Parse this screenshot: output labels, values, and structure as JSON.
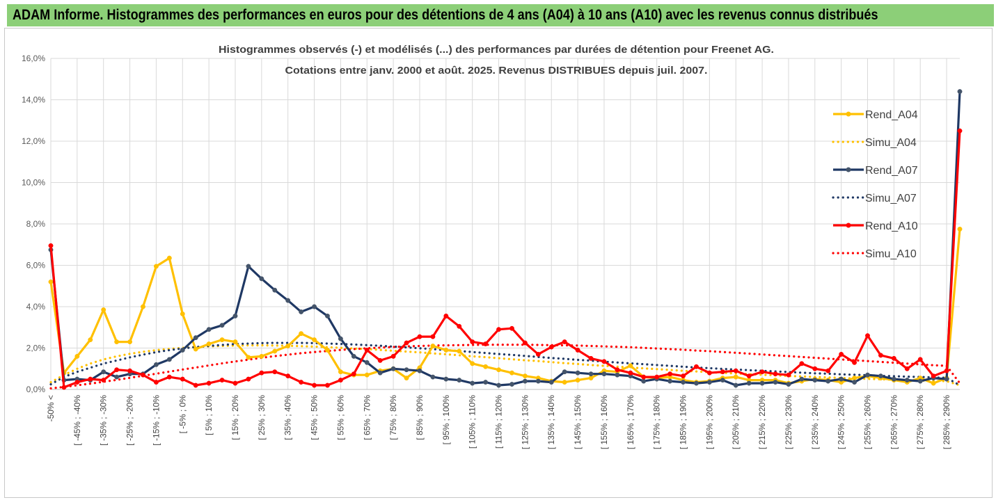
{
  "banner": {
    "title": "ADAM Informe. Histogrammes des performances en euros pour des détentions de 4 ans (A04) à 10 ans (A10) avec les revenus connus distribués"
  },
  "chart_data": {
    "type": "line",
    "title": "Histogrammes observés (-) et modélisés (...) des performances par durées de détention pour Freenet AG.",
    "subtitle": "Cotations entre janv. 2000 et août. 2025. Revenus DISTRIBUES depuis juil. 2007.",
    "xlabel": "",
    "ylabel": "",
    "ylim": [
      0,
      16
    ],
    "yticks": [
      "0,0%",
      "2,0%",
      "4,0%",
      "6,0%",
      "8,0%",
      "10,0%",
      "12,0%",
      "14,0%",
      "16,0%"
    ],
    "grid": true,
    "legend_position": "right",
    "category_count": 70,
    "x_labels": [
      "-50% <",
      "[ -45% ; -40%",
      "[ -35% ; -30%",
      "[ -25% ; -20%",
      "[ -15% ; -10%",
      "[ -5% ; 0%",
      "[ 5% ; 10%",
      "[ 15% ; 20%",
      "[ 25% ; 30%",
      "[ 35% ; 40%",
      "[ 45% ; 50%",
      "[ 55% ; 60%",
      "[ 65% ; 70%",
      "[ 75% ; 80%",
      "[ 85% ; 90%",
      "[ 95% ; 100%",
      "[ 105% ; 110%",
      "[ 115% ; 120%",
      "[ 125% ; 130%",
      "[ 135% ; 140%",
      "[ 145% ; 150%",
      "[ 155% ; 160%",
      "[ 165% ; 170%",
      "[ 175% ; 180%",
      "[ 185% ; 190%",
      "[ 195% ; 200%",
      "[ 205% ; 210%",
      "[ 215% ; 220%",
      "[ 225% ; 230%",
      "[ 235% ; 240%",
      "[ 245% ; 250%",
      "[ 255% ; 260%",
      "[ 265% ; 270%",
      "[ 275% ; 280%",
      "[ 285% ; 290%"
    ],
    "series": [
      {
        "name": "Rend_A04",
        "style": "solid",
        "color": "#ffc000",
        "values": [
          5.2,
          0.8,
          1.6,
          2.4,
          3.85,
          2.3,
          2.3,
          4.0,
          5.95,
          6.35,
          3.65,
          1.95,
          2.2,
          2.4,
          2.3,
          1.55,
          1.6,
          1.85,
          2.1,
          2.7,
          2.4,
          1.9,
          0.85,
          0.7,
          0.7,
          0.9,
          1.0,
          0.55,
          1.05,
          2.1,
          1.9,
          1.85,
          1.25,
          1.1,
          0.95,
          0.8,
          0.65,
          0.55,
          0.4,
          0.35,
          0.45,
          0.55,
          0.9,
          0.85,
          1.15,
          0.6,
          0.55,
          0.6,
          0.45,
          0.35,
          0.4,
          0.55,
          0.6,
          0.45,
          0.45,
          0.45,
          0.3,
          0.4,
          0.5,
          0.45,
          0.35,
          0.55,
          0.65,
          0.55,
          0.45,
          0.35,
          0.55,
          0.3,
          0.55,
          7.75
        ]
      },
      {
        "name": "Simu_A04",
        "style": "dotted",
        "color": "#ffc000",
        "values": [
          0.35,
          0.7,
          1.0,
          1.25,
          1.45,
          1.6,
          1.72,
          1.82,
          1.9,
          1.96,
          2.01,
          2.05,
          2.08,
          2.1,
          2.12,
          2.13,
          2.13,
          2.12,
          2.11,
          2.09,
          2.07,
          2.04,
          2.01,
          1.98,
          1.95,
          1.91,
          1.87,
          1.83,
          1.79,
          1.74,
          1.7,
          1.65,
          1.6,
          1.56,
          1.51,
          1.46,
          1.41,
          1.37,
          1.32,
          1.27,
          1.23,
          1.18,
          1.14,
          1.1,
          1.06,
          1.02,
          0.98,
          0.94,
          0.9,
          0.87,
          0.83,
          0.8,
          0.77,
          0.74,
          0.71,
          0.68,
          0.65,
          0.63,
          0.6,
          0.58,
          0.55,
          0.53,
          0.51,
          0.49,
          0.47,
          0.45,
          0.43,
          0.41,
          0.4,
          0.2
        ]
      },
      {
        "name": "Rend_A07",
        "style": "solid",
        "color": "#1f3864",
        "values": [
          6.75,
          0.45,
          0.5,
          0.45,
          0.85,
          0.6,
          0.75,
          0.75,
          1.2,
          1.45,
          1.9,
          2.5,
          2.9,
          3.1,
          3.55,
          5.95,
          5.35,
          4.8,
          4.3,
          3.75,
          4.0,
          3.55,
          2.45,
          1.6,
          1.3,
          0.8,
          1.0,
          0.95,
          0.9,
          0.6,
          0.5,
          0.45,
          0.3,
          0.35,
          0.2,
          0.25,
          0.4,
          0.4,
          0.35,
          0.85,
          0.8,
          0.75,
          0.75,
          0.7,
          0.65,
          0.4,
          0.5,
          0.4,
          0.35,
          0.3,
          0.35,
          0.45,
          0.2,
          0.3,
          0.3,
          0.35,
          0.25,
          0.5,
          0.45,
          0.4,
          0.5,
          0.35,
          0.7,
          0.65,
          0.5,
          0.45,
          0.4,
          0.55,
          0.5,
          14.4
        ]
      },
      {
        "name": "Simu_A07",
        "style": "dotted",
        "color": "#1f3864",
        "values": [
          0.25,
          0.6,
          0.85,
          1.05,
          1.25,
          1.4,
          1.55,
          1.68,
          1.8,
          1.9,
          1.98,
          2.05,
          2.1,
          2.15,
          2.19,
          2.22,
          2.24,
          2.25,
          2.25,
          2.25,
          2.24,
          2.22,
          2.2,
          2.17,
          2.14,
          2.11,
          2.07,
          2.03,
          1.99,
          1.95,
          1.9,
          1.86,
          1.81,
          1.76,
          1.71,
          1.67,
          1.62,
          1.57,
          1.52,
          1.48,
          1.43,
          1.39,
          1.34,
          1.3,
          1.26,
          1.22,
          1.18,
          1.14,
          1.1,
          1.06,
          1.03,
          0.99,
          0.96,
          0.93,
          0.9,
          0.87,
          0.84,
          0.81,
          0.78,
          0.76,
          0.73,
          0.71,
          0.69,
          0.66,
          0.64,
          0.62,
          0.6,
          0.58,
          0.56,
          0.2
        ]
      },
      {
        "name": "Rend_A10",
        "style": "solid",
        "color": "#ff0000",
        "values": [
          6.95,
          0.1,
          0.35,
          0.5,
          0.45,
          0.95,
          0.9,
          0.7,
          0.35,
          0.6,
          0.5,
          0.2,
          0.3,
          0.45,
          0.3,
          0.5,
          0.8,
          0.85,
          0.65,
          0.35,
          0.2,
          0.2,
          0.45,
          0.75,
          1.9,
          1.4,
          1.6,
          2.25,
          2.55,
          2.55,
          3.55,
          3.05,
          2.3,
          2.2,
          2.9,
          2.95,
          2.25,
          1.7,
          2.05,
          2.3,
          1.9,
          1.5,
          1.35,
          0.95,
          0.8,
          0.6,
          0.6,
          0.75,
          0.65,
          1.1,
          0.8,
          0.85,
          0.9,
          0.65,
          0.85,
          0.75,
          0.7,
          1.25,
          1.0,
          0.9,
          1.7,
          1.3,
          2.6,
          1.65,
          1.5,
          1.0,
          1.45,
          0.65,
          0.9,
          12.5
        ]
      },
      {
        "name": "Simu_A10",
        "style": "dotted",
        "color": "#ff0000",
        "values": [
          0.05,
          0.12,
          0.2,
          0.28,
          0.37,
          0.46,
          0.56,
          0.66,
          0.76,
          0.86,
          0.96,
          1.06,
          1.16,
          1.26,
          1.35,
          1.44,
          1.53,
          1.61,
          1.68,
          1.75,
          1.81,
          1.86,
          1.91,
          1.95,
          1.99,
          2.02,
          2.05,
          2.08,
          2.1,
          2.12,
          2.13,
          2.14,
          2.15,
          2.16,
          2.16,
          2.16,
          2.16,
          2.15,
          2.14,
          2.13,
          2.12,
          2.1,
          2.08,
          2.06,
          2.04,
          2.01,
          1.98,
          1.95,
          1.92,
          1.88,
          1.85,
          1.81,
          1.77,
          1.73,
          1.69,
          1.65,
          1.61,
          1.57,
          1.53,
          1.49,
          1.45,
          1.41,
          1.37,
          1.33,
          1.29,
          1.25,
          1.21,
          1.17,
          1.14,
          0.3
        ]
      }
    ]
  }
}
